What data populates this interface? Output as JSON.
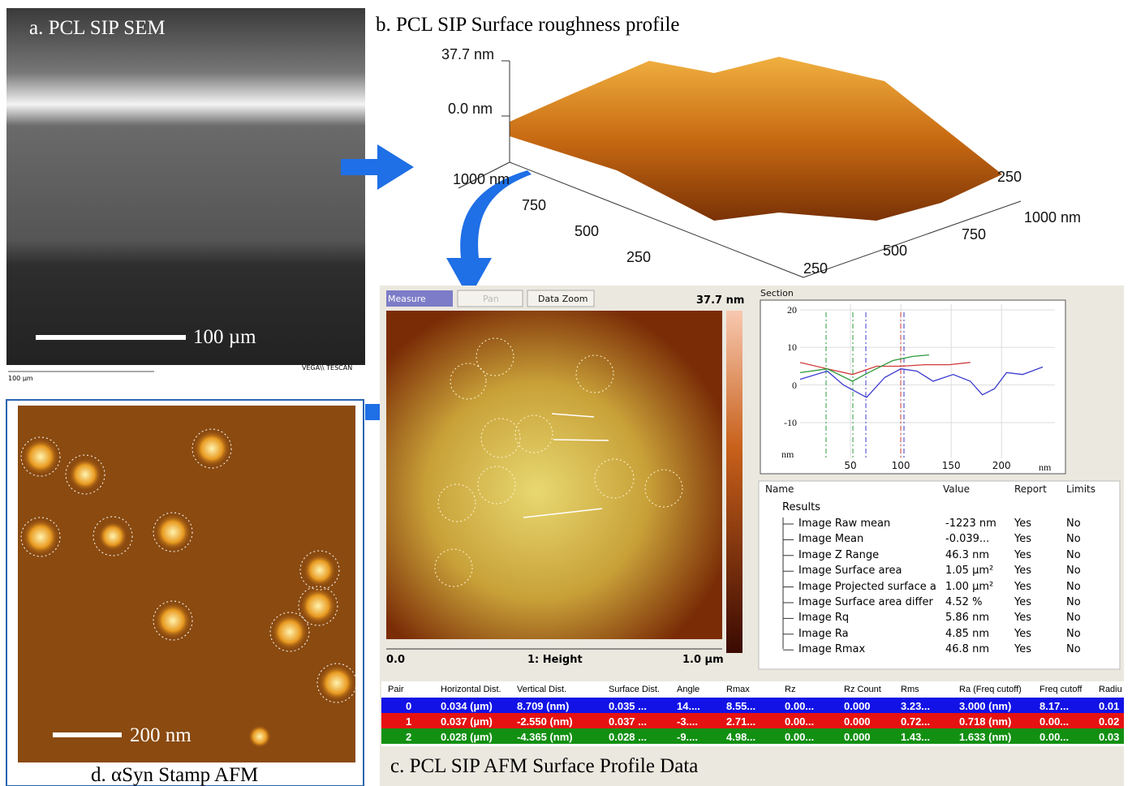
{
  "panel_a": {
    "title": "a. PCL SIP SEM",
    "scale_bar": "100 µm",
    "footer_scale": "100 µm",
    "footer_brand": "VEGA\\\\ TESCAN"
  },
  "panel_b": {
    "title": "b. PCL SIP Surface roughness profile",
    "z_labels": [
      "37.7 nm",
      "0.0 nm"
    ],
    "y_labels": [
      "1000 nm",
      "750",
      "500",
      "250"
    ],
    "x_labels": [
      "250",
      "500",
      "750",
      "1000 nm"
    ],
    "side_label": "250"
  },
  "panel_c": {
    "title": "c. PCL SIP AFM Surface Profile Data",
    "toolbar": [
      "Measure",
      "Pan",
      "Data Zoom"
    ],
    "z_max": "37.7 nm",
    "x_min": "0.0",
    "channel": "1: Height",
    "x_max": "1.0 µm",
    "section": {
      "type": "line",
      "title": "Section",
      "y_label": "nm",
      "x_label": "nm",
      "xlim": [
        0,
        253
      ],
      "ylim": [
        -19.5,
        21.5
      ],
      "xticks": [
        50,
        100,
        150,
        200
      ],
      "yticks": [
        -10,
        0,
        10,
        20
      ],
      "grid": true,
      "series": [
        {
          "color": "#3a3ad0",
          "x": [
            0,
            27,
            43,
            66,
            84,
            100,
            116,
            132,
            152,
            169,
            181,
            193,
            205,
            221,
            241
          ],
          "values": [
            1.5,
            3.7,
            0,
            -3.3,
            2,
            4.3,
            3.7,
            1,
            2.8,
            1,
            -2.6,
            -1,
            3.3,
            2.8,
            4.8
          ]
        },
        {
          "color": "#d03a3a",
          "x": [
            0,
            27,
            52,
            76,
            100,
            124,
            148,
            169
          ],
          "values": [
            6,
            4.3,
            2.8,
            5,
            5,
            5.4,
            5.4,
            6
          ]
        },
        {
          "color": "#2a9a3a",
          "x": [
            0,
            27,
            52,
            68,
            92,
            112,
            128
          ],
          "values": [
            3.3,
            4.3,
            1,
            3.3,
            6.5,
            7.6,
            8
          ]
        }
      ]
    },
    "results_table": {
      "columns": [
        "Name",
        "Value",
        "Report",
        "Limits"
      ],
      "group": "Results",
      "rows": [
        [
          "Image Raw mean",
          "-1223 nm",
          "Yes",
          "No"
        ],
        [
          "Image Mean",
          "-0.039...",
          "Yes",
          "No"
        ],
        [
          "Image Z Range",
          "46.3 nm",
          "Yes",
          "No"
        ],
        [
          "Image Surface area",
          "1.05 µm²",
          "Yes",
          "No"
        ],
        [
          "Image Projected surface a",
          "1.00 µm²",
          "Yes",
          "No"
        ],
        [
          "Image Surface area differ",
          "4.52 %",
          "Yes",
          "No"
        ],
        [
          "Image Rq",
          "5.86 nm",
          "Yes",
          "No"
        ],
        [
          "Image Ra",
          "4.85 nm",
          "Yes",
          "No"
        ],
        [
          "Image Rmax",
          "46.8 nm",
          "Yes",
          "No"
        ]
      ]
    },
    "profile_table": {
      "columns": [
        "Pair",
        "Horizontal Dist.",
        "Vertical Dist.",
        "Surface Dist.",
        "Angle",
        "Rmax",
        "Rz",
        "Rz Count",
        "Rms",
        "Ra (Freq cutoff)",
        "Freq cutoff",
        "Radiu"
      ],
      "rows": [
        [
          "0",
          "0.034 (µm)",
          "8.709 (nm)",
          "0.035 ...",
          "14....",
          "8.55...",
          "0.00...",
          "0.000",
          "3.23...",
          "3.000 (nm)",
          "8.17...",
          "0.01"
        ],
        [
          "1",
          "0.037 (µm)",
          "-2.550 (nm)",
          "0.037 ...",
          "-3....",
          "2.71...",
          "0.00...",
          "0.000",
          "0.72...",
          "0.718 (nm)",
          "0.00...",
          "0.02"
        ],
        [
          "2",
          "0.028 (µm)",
          "-4.365 (nm)",
          "0.028 ...",
          "-9....",
          "4.98...",
          "0.00...",
          "0.000",
          "1.43...",
          "1.633 (nm)",
          "0.00...",
          "0.03"
        ]
      ]
    }
  },
  "panel_d": {
    "title": "d. αSyn Stamp AFM",
    "scale_bar": "200 nm"
  }
}
